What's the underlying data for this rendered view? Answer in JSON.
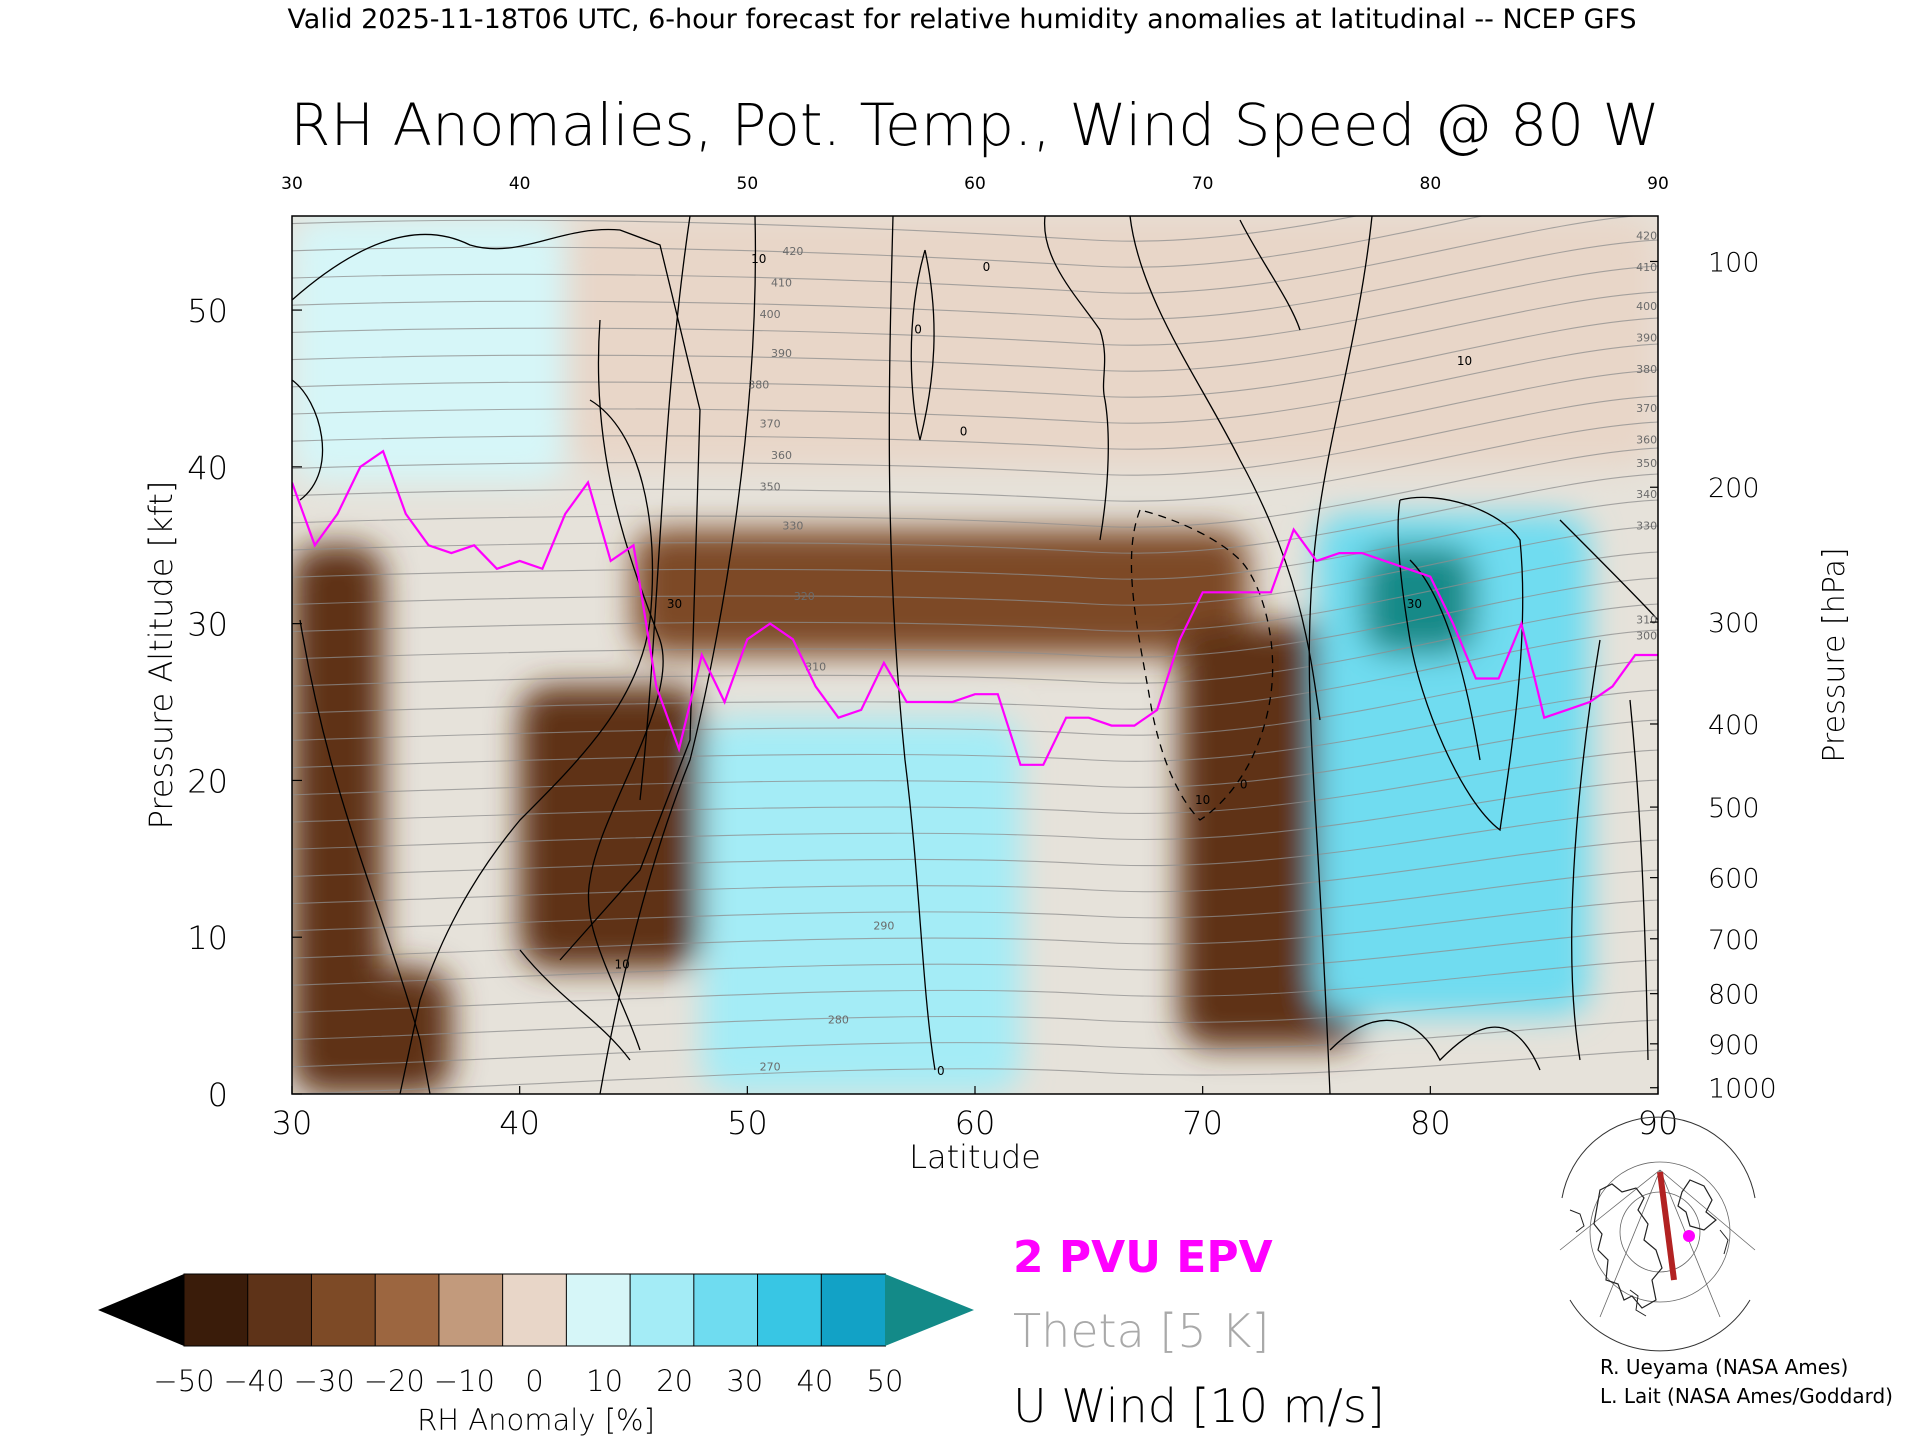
{
  "header": {
    "valid_line": "Valid 2025-11-18T06 UTC, 6-hour forecast for relative humidity anomalies at latitudinal -- NCEP GFS"
  },
  "chart_data": {
    "type": "heatmap",
    "title": "RH Anomalies, Pot. Temp., Wind Speed @ 80 W",
    "xlabel": "Latitude",
    "ylabel": "Pressure Altitude [kft]",
    "y2label": "Pressure [hPa]",
    "xlim": [
      30,
      90
    ],
    "ylim": [
      0,
      56
    ],
    "x_ticks": [
      "30",
      "40",
      "50",
      "60",
      "70",
      "80",
      "90"
    ],
    "y_ticks": [
      "0",
      "10",
      "20",
      "30",
      "40",
      "50"
    ],
    "pressure_ticks": [
      {
        "label": "100",
        "kft": 53.1
      },
      {
        "label": "200",
        "kft": 38.7
      },
      {
        "label": "300",
        "kft": 30.1
      },
      {
        "label": "400",
        "kft": 23.6
      },
      {
        "label": "500",
        "kft": 18.3
      },
      {
        "label": "600",
        "kft": 13.8
      },
      {
        "label": "700",
        "kft": 9.9
      },
      {
        "label": "800",
        "kft": 6.4
      },
      {
        "label": "900",
        "kft": 3.2
      },
      {
        "label": "1000",
        "kft": 0.4
      }
    ],
    "colorbar": {
      "label": "RH Anomaly [%]",
      "ticks": [
        "-50",
        "-40",
        "-30",
        "-20",
        "-10",
        "0",
        "10",
        "20",
        "30",
        "40",
        "50"
      ],
      "colors": [
        "#3a1c0a",
        "#5e3318",
        "#7d4a26",
        "#9c6640",
        "#c29a7c",
        "#e8d6c8",
        "#d6f6f8",
        "#a4ecf6",
        "#6fdcf0",
        "#38c6e4",
        "#12a2c6"
      ],
      "low_extend_color": "#000000",
      "high_extend_color": "#138a88"
    },
    "legend": [
      {
        "label": "2 PVU EPV",
        "color": "#ff00ff"
      },
      {
        "label": "Theta [5 K]",
        "color": "#a9a9a9"
      },
      {
        "label": "U Wind [10 m/s]",
        "color": "#000000"
      }
    ],
    "epv_2pvu": {
      "lat": [
        30,
        31,
        32,
        33,
        34,
        35,
        36,
        37,
        38,
        39,
        40,
        41,
        42,
        43,
        44,
        45,
        46,
        47,
        48,
        49,
        50,
        51,
        52,
        53,
        54,
        55,
        56,
        57,
        58,
        59,
        60,
        61,
        62,
        63,
        64,
        65,
        66,
        67,
        68,
        69,
        70,
        71,
        72,
        73,
        74,
        75,
        76,
        77,
        78,
        79,
        80,
        81,
        82,
        83,
        84,
        85,
        86,
        87,
        88,
        89,
        90
      ],
      "kft": [
        39,
        35,
        37,
        40,
        41,
        37,
        35,
        34.5,
        35,
        33.5,
        34,
        33.5,
        37,
        39,
        34,
        35,
        26,
        22,
        28,
        25,
        29,
        30,
        29,
        26,
        24,
        24.5,
        27.5,
        25,
        25,
        25,
        25.5,
        25.5,
        21,
        21,
        24,
        24,
        23.5,
        23.5,
        24.5,
        29,
        32,
        32,
        32,
        32,
        36,
        34,
        34.5,
        34.5,
        34,
        33.5,
        33,
        30,
        26.5,
        26.5,
        30,
        24,
        24.5,
        25,
        26,
        28,
        28
      ]
    },
    "rh_anomaly_features": [
      {
        "name": "dry-upper-band",
        "lat": [
          45,
          72
        ],
        "kft": [
          28,
          36
        ],
        "value": -30
      },
      {
        "name": "dry-column-31n",
        "lat": [
          30,
          34
        ],
        "kft": [
          0,
          35
        ],
        "value": -35
      },
      {
        "name": "dry-tilted-44n",
        "lat": [
          40,
          48
        ],
        "kft": [
          8,
          26
        ],
        "value": -40
      },
      {
        "name": "dry-surface-31n",
        "lat": [
          30,
          37
        ],
        "kft": [
          0,
          8
        ],
        "value": -40
      },
      {
        "name": "dry-column-72n",
        "lat": [
          69,
          77
        ],
        "kft": [
          3,
          30
        ],
        "value": -40
      },
      {
        "name": "moist-column-52n",
        "lat": [
          48,
          62
        ],
        "kft": [
          0,
          24
        ],
        "value": 20
      },
      {
        "name": "moist-column-80n",
        "lat": [
          75,
          87
        ],
        "kft": [
          5,
          37
        ],
        "value": 35
      },
      {
        "name": "moist-core-80n",
        "lat": [
          77,
          82
        ],
        "kft": [
          28,
          35
        ],
        "value": 50
      },
      {
        "name": "moist-upper-36n",
        "lat": [
          30,
          42
        ],
        "kft": [
          39,
          56
        ],
        "value": 10
      },
      {
        "name": "near-zero-stratosphere",
        "lat": [
          42,
          90
        ],
        "kft": [
          40,
          56
        ],
        "value": 2
      }
    ],
    "theta_contour_labels": [
      {
        "label": "420",
        "lat": 52,
        "kft": 53.5
      },
      {
        "label": "410",
        "lat": 51.5,
        "kft": 51.5
      },
      {
        "label": "400",
        "lat": 51,
        "kft": 49.5
      },
      {
        "label": "390",
        "lat": 51.5,
        "kft": 47
      },
      {
        "label": "380",
        "lat": 50.5,
        "kft": 45
      },
      {
        "label": "370",
        "lat": 51,
        "kft": 42.5
      },
      {
        "label": "360",
        "lat": 51.5,
        "kft": 40.5
      },
      {
        "label": "350",
        "lat": 51,
        "kft": 38.5
      },
      {
        "label": "330",
        "lat": 52,
        "kft": 36
      },
      {
        "label": "320",
        "lat": 52.5,
        "kft": 31.5
      },
      {
        "label": "310",
        "lat": 53,
        "kft": 27
      },
      {
        "label": "290",
        "lat": 56,
        "kft": 10.5
      },
      {
        "label": "280",
        "lat": 54,
        "kft": 4.5
      },
      {
        "label": "270",
        "lat": 51,
        "kft": 1.5
      },
      {
        "label": "420",
        "lat": 89.5,
        "kft": 54.5
      },
      {
        "label": "410",
        "lat": 89.5,
        "kft": 52.5
      },
      {
        "label": "400",
        "lat": 89.5,
        "kft": 50
      },
      {
        "label": "390",
        "lat": 89.5,
        "kft": 48
      },
      {
        "label": "380",
        "lat": 89.5,
        "kft": 46
      },
      {
        "label": "370",
        "lat": 89.5,
        "kft": 43.5
      },
      {
        "label": "360",
        "lat": 89.5,
        "kft": 41.5
      },
      {
        "label": "350",
        "lat": 89.5,
        "kft": 40
      },
      {
        "label": "340",
        "lat": 89.5,
        "kft": 38
      },
      {
        "label": "330",
        "lat": 89.5,
        "kft": 36
      },
      {
        "label": "310",
        "lat": 89.5,
        "kft": 30
      },
      {
        "label": "300",
        "lat": 89.5,
        "kft": 29
      }
    ],
    "u_wind_contour_labels": [
      {
        "label": "10",
        "lat": 50.5,
        "kft": 53
      },
      {
        "label": "0",
        "lat": 57.5,
        "kft": 48.5
      },
      {
        "label": "0",
        "lat": 60.5,
        "kft": 52.5
      },
      {
        "label": "0",
        "lat": 59.5,
        "kft": 42
      },
      {
        "label": "10",
        "lat": 81.5,
        "kft": 46.5
      },
      {
        "label": "30",
        "lat": 46.8,
        "kft": 31
      },
      {
        "label": "10",
        "lat": 70,
        "kft": 18.5
      },
      {
        "label": "0",
        "lat": 71.8,
        "kft": 19.5
      },
      {
        "label": "10",
        "lat": 44.5,
        "kft": 8
      },
      {
        "label": "30",
        "lat": 79.3,
        "kft": 31
      },
      {
        "label": "0",
        "lat": 58.5,
        "kft": 1.2
      }
    ],
    "map_inset_marker_color": "#ff00ff",
    "map_inset_section_color": "#b22222"
  },
  "credits": {
    "line1": "R. Ueyama (NASA Ames)",
    "line2": "L. Lait (NASA Ames/Goddard)"
  }
}
